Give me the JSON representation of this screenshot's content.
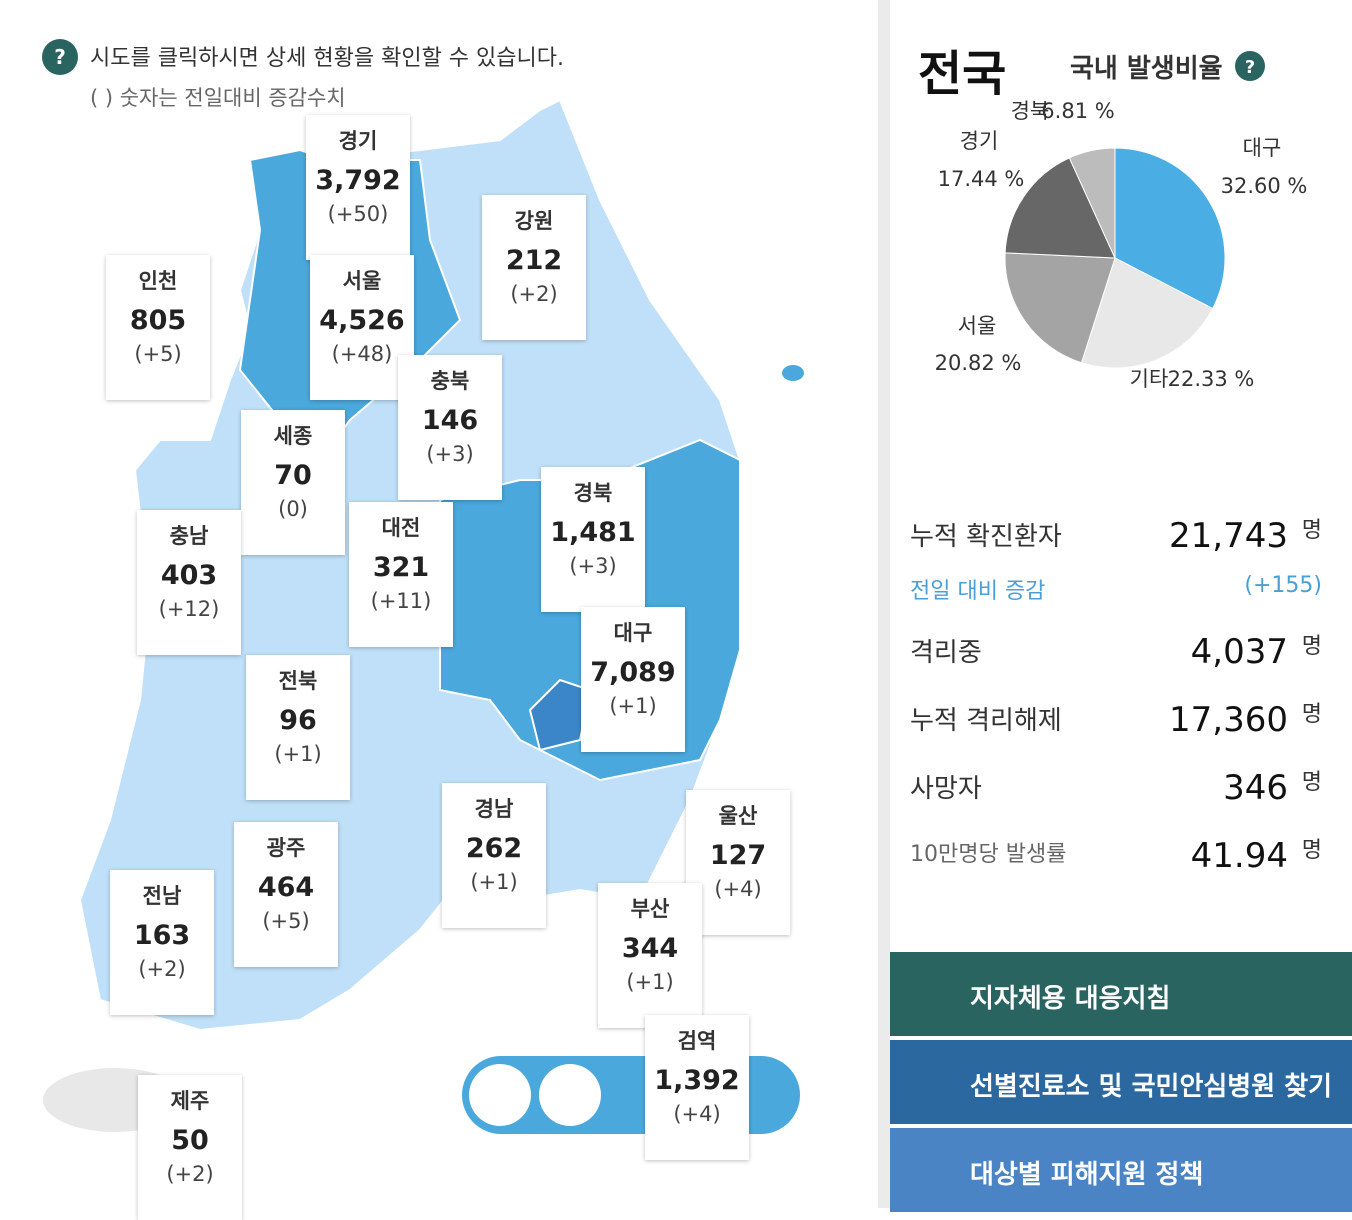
{
  "notice": {
    "text": "시도를 클릭하시면 상세 현황을 확인할 수 있습니다.",
    "subtext": "( ) 숫자는 전일대비 증감수치"
  },
  "regions": [
    {
      "name": "경기",
      "count": "3,792",
      "change": "(+50)"
    },
    {
      "name": "강원",
      "count": "212",
      "change": "(+2)"
    },
    {
      "name": "인천",
      "count": "805",
      "change": "(+5)"
    },
    {
      "name": "서울",
      "count": "4,526",
      "change": "(+48)"
    },
    {
      "name": "충북",
      "count": "146",
      "change": "(+3)"
    },
    {
      "name": "세종",
      "count": "70",
      "change": "(0)"
    },
    {
      "name": "충남",
      "count": "403",
      "change": "(+12)"
    },
    {
      "name": "대전",
      "count": "321",
      "change": "(+11)"
    },
    {
      "name": "경북",
      "count": "1,481",
      "change": "(+3)"
    },
    {
      "name": "대구",
      "count": "7,089",
      "change": "(+1)"
    },
    {
      "name": "전북",
      "count": "96",
      "change": "(+1)"
    },
    {
      "name": "경남",
      "count": "262",
      "change": "(+1)"
    },
    {
      "name": "울산",
      "count": "127",
      "change": "(+4)"
    },
    {
      "name": "광주",
      "count": "464",
      "change": "(+5)"
    },
    {
      "name": "전남",
      "count": "163",
      "change": "(+2)"
    },
    {
      "name": "부산",
      "count": "344",
      "change": "(+1)"
    },
    {
      "name": "검역",
      "count": "1,392",
      "change": "(+4)"
    },
    {
      "name": "제주",
      "count": "50",
      "change": "(+2)"
    }
  ],
  "national": {
    "title": "전국"
  },
  "chart_data": {
    "type": "pie",
    "title": "국내 발생비율",
    "categories": [
      "대구",
      "기타",
      "서울",
      "경기",
      "경북"
    ],
    "values": [
      32.6,
      22.33,
      20.82,
      17.44,
      6.81
    ],
    "value_labels": [
      "32.60 %",
      "22.33 %",
      "20.82 %",
      "17.44 %",
      "6.81 %"
    ],
    "colors": [
      "#4aaee4",
      "#e8e8e8",
      "#a4a4a4",
      "#676767",
      "#bcbcbc"
    ]
  },
  "summary": [
    {
      "label": "누적 확진환자",
      "value": "21,743",
      "unit": "명"
    },
    {
      "label": "전일 대비 증감",
      "value": "(+155)"
    },
    {
      "label": "격리중",
      "value": "4,037",
      "unit": "명"
    },
    {
      "label": "누적 격리해제",
      "value": "17,360",
      "unit": "명"
    },
    {
      "label": "사망자",
      "value": "346",
      "unit": "명"
    },
    {
      "label": "10만명당 발생률",
      "value": "41.94",
      "unit": "명"
    }
  ],
  "buttons": [
    "지자체용 대응지침",
    "선별진료소 및 국민안심병원 찾기",
    "대상별 피해지원 정책"
  ]
}
